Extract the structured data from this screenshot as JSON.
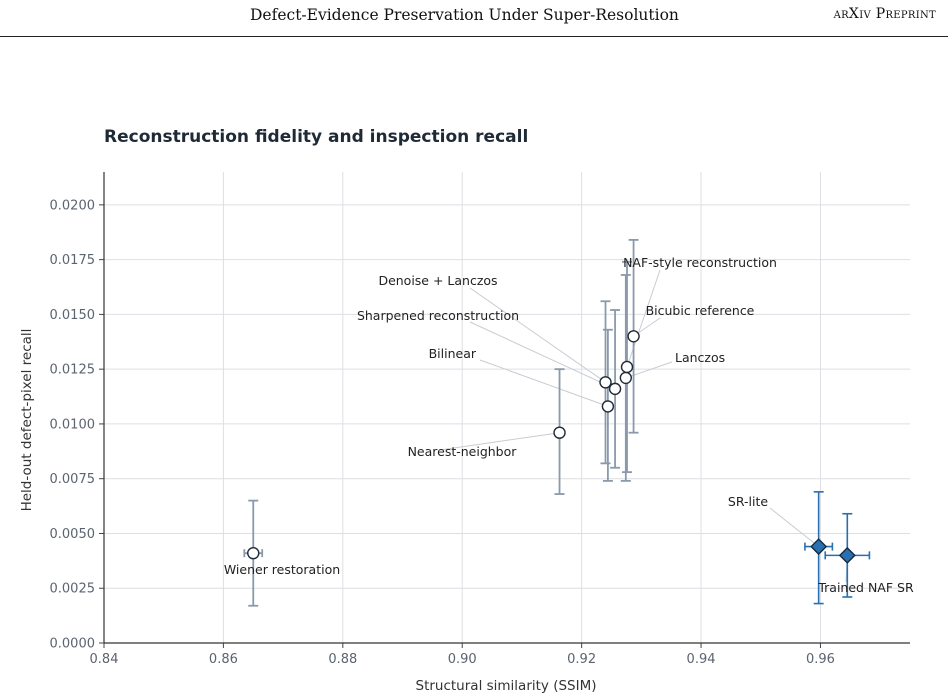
{
  "header": {
    "title": "Defect-Evidence Preservation Under Super-Resolution",
    "right": "arXiv Preprint"
  },
  "chart_data": {
    "type": "scatter",
    "title": "Reconstruction fidelity and inspection recall",
    "xlabel": "Structural similarity (SSIM)",
    "ylabel": "Held-out defect-pixel recall",
    "xlim": [
      0.84,
      0.975
    ],
    "ylim": [
      0,
      0.0215
    ],
    "x_ticks": [
      "0.84",
      "0.86",
      "0.88",
      "0.90",
      "0.92",
      "0.94",
      "0.96"
    ],
    "y_ticks": [
      "0.0000",
      "0.0025",
      "0.0050",
      "0.0075",
      "0.0100",
      "0.0125",
      "0.0150",
      "0.0175",
      "0.0200"
    ],
    "grid": true,
    "colors": {
      "baseline": "#8a9aab",
      "trained": "#2a6fb0",
      "trained_fill": "#2a6fb0"
    },
    "points": [
      {
        "name": "Wiener restoration",
        "x": 0.865,
        "y": 0.0041,
        "xerr": 0.0015,
        "ylo": 0.0017,
        "yhi": 0.0065,
        "group": "baseline"
      },
      {
        "name": "Nearest-neighbor",
        "x": 0.9163,
        "y": 0.0096,
        "xerr": 0.0,
        "ylo": 0.0068,
        "yhi": 0.0125,
        "group": "baseline"
      },
      {
        "name": "Bilinear",
        "x": 0.9244,
        "y": 0.0108,
        "xerr": 0.0,
        "ylo": 0.0074,
        "yhi": 0.0143,
        "group": "baseline"
      },
      {
        "name": "Denoise + Lanczos",
        "x": 0.924,
        "y": 0.0119,
        "xerr": 0.0,
        "ylo": 0.0082,
        "yhi": 0.0156,
        "group": "baseline"
      },
      {
        "name": "Sharpened reconstruction",
        "x": 0.9256,
        "y": 0.0116,
        "xerr": 0.0,
        "ylo": 0.008,
        "yhi": 0.0152,
        "group": "baseline"
      },
      {
        "name": "Lanczos",
        "x": 0.9274,
        "y": 0.0121,
        "xerr": 0.0,
        "ylo": 0.0074,
        "yhi": 0.0168,
        "group": "baseline"
      },
      {
        "name": "NAF-style reconstruction",
        "x": 0.9276,
        "y": 0.0126,
        "xerr": 0.0,
        "ylo": 0.0078,
        "yhi": 0.0174,
        "group": "baseline"
      },
      {
        "name": "Bicubic reference",
        "x": 0.9287,
        "y": 0.014,
        "xerr": 0.0,
        "ylo": 0.0096,
        "yhi": 0.0184,
        "group": "baseline"
      },
      {
        "name": "SR-lite",
        "x": 0.9597,
        "y": 0.0044,
        "xerr": 0.0023,
        "ylo": 0.0018,
        "yhi": 0.0069,
        "group": "trained"
      },
      {
        "name": "Trained NAF SR",
        "x": 0.9645,
        "y": 0.004,
        "xerr": 0.0037,
        "ylo": 0.0021,
        "yhi": 0.0059,
        "group": "trained"
      }
    ]
  }
}
